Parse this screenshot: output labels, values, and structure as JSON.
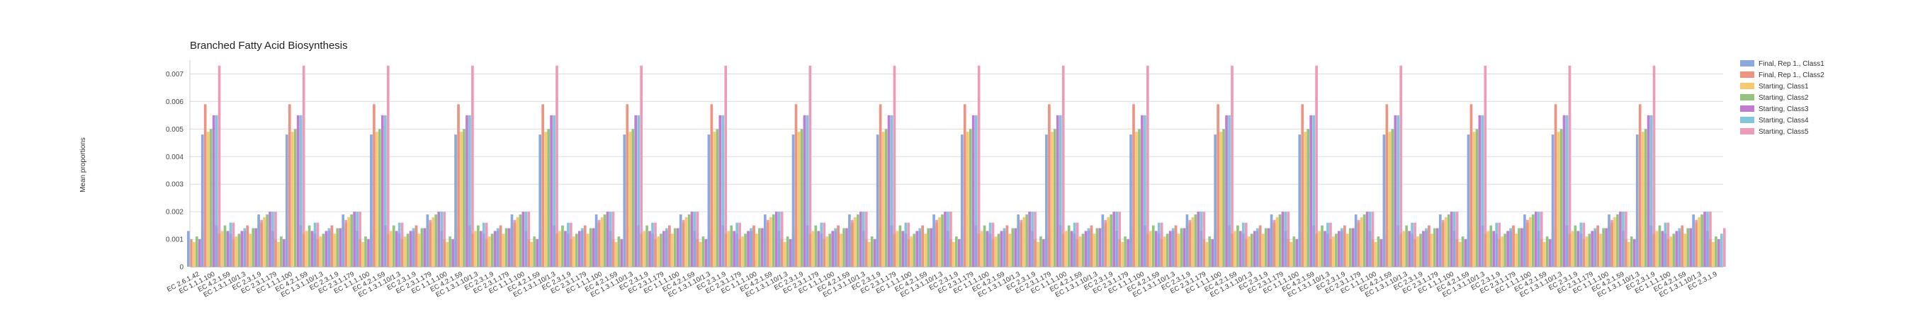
{
  "chart_data": {
    "type": "bar",
    "title": "Branched Fatty Acid Biosynthesis",
    "xlabel": "",
    "ylabel": "Mean proportions",
    "ylim": [
      0,
      0.0075
    ],
    "yticks": [
      0,
      0.001,
      0.002,
      0.003,
      0.004,
      0.005,
      0.006,
      0.007
    ],
    "grid": true,
    "legend_position": "right",
    "series": [
      {
        "name": "Final, Rep 1., Class1",
        "color": "#8aa9de"
      },
      {
        "name": "Final, Rep 1., Class2",
        "color": "#ee9380"
      },
      {
        "name": "Starting, Class1",
        "color": "#f6c96e"
      },
      {
        "name": "Starting, Class2",
        "color": "#93c47d"
      },
      {
        "name": "Starting, Class3",
        "color": "#c27ad3"
      },
      {
        "name": "Starting, Class4",
        "color": "#7fc6de"
      },
      {
        "name": "Starting, Class5",
        "color": "#ef9ab7"
      }
    ],
    "category_group": [
      "EC 2.6.1.42",
      "EC 1.1.1.100",
      "EC 4.2.1.59",
      "EC 1.3.1.10/1.3",
      "EC 2.3.1.9",
      "EC 2.3.1.179"
    ],
    "group_values": [
      [
        0.0013,
        0.001,
        0.0009,
        0.0011,
        0.001,
        0.0012,
        0.0014
      ],
      [
        0.0048,
        0.0059,
        0.0049,
        0.005,
        0.0055,
        0.0055,
        0.0073
      ],
      [
        0.0015,
        0.0012,
        0.0013,
        0.0015,
        0.0013,
        0.0016,
        0.0016
      ],
      [
        0.0012,
        0.001,
        0.0011,
        0.0012,
        0.0013,
        0.0014,
        0.0015
      ],
      [
        0.0013,
        0.0015,
        0.0012,
        0.0014,
        0.0014,
        0.0015,
        0.0017
      ],
      [
        0.0019,
        0.0016,
        0.0018,
        0.0019,
        0.002,
        0.002,
        0.002
      ]
    ],
    "categories": [
      "EC 2.6.1.42",
      "EC 1.1.1.100",
      "EC 4.2.1.59",
      "EC 1.3.1.10/1.3",
      "EC 2.3.1.9",
      "EC 2.3.1.179",
      "EC 1.1.1.100",
      "EC 4.2.1.59",
      "EC 1.3.1.10/1.3",
      "EC 2.3.1.9",
      "EC 2.3.1.179",
      "EC 1.1.1.100",
      "EC 4.2.1.59",
      "EC 1.3.1.10/1.3",
      "EC 2.3.1.9",
      "EC 2.3.1.179",
      "EC 1.1.1.100",
      "EC 4.2.1.59",
      "EC 1.3.1.10/1.3",
      "EC 2.3.1.9",
      "EC 2.3.1.179",
      "EC 1.1.1.100",
      "EC 4.2.1.59",
      "EC 1.3.1.10/1.3",
      "EC 2.3.1.9",
      "EC 2.3.1.179",
      "EC 1.1.1.100",
      "EC 4.2.1.59",
      "EC 1.3.1.10/1.3",
      "EC 2.3.1.9",
      "EC 2.3.1.179",
      "EC 1.1.1.100",
      "EC 4.2.1.59",
      "EC 1.3.1.10/1.3",
      "EC 2.3.1.9",
      "EC 2.3.1.179",
      "EC 1.1.1.100",
      "EC 4.2.1.59",
      "EC 1.3.1.10/1.3",
      "EC 2.3.1.9",
      "EC 2.3.1.179",
      "EC 1.1.1.100",
      "EC 4.2.1.59",
      "EC 1.3.1.10/1.3",
      "EC 2.3.1.9",
      "EC 2.3.1.179",
      "EC 1.1.1.100",
      "EC 4.2.1.59",
      "EC 1.3.1.10/1.3",
      "EC 2.3.1.9",
      "EC 2.3.1.179",
      "EC 1.1.1.100",
      "EC 4.2.1.59",
      "EC 1.3.1.10/1.3",
      "EC 2.3.1.9",
      "EC 2.3.1.179",
      "EC 1.1.1.100",
      "EC 4.2.1.59",
      "EC 1.3.1.10/1.3",
      "EC 2.3.1.9",
      "EC 2.3.1.179",
      "EC 1.1.1.100",
      "EC 4.2.1.59",
      "EC 1.3.1.10/1.3",
      "EC 2.3.1.9",
      "EC 2.3.1.179",
      "EC 1.1.1.100",
      "EC 4.2.1.59",
      "EC 1.3.1.10/1.3",
      "EC 2.3.1.9",
      "EC 2.3.1.179",
      "EC 1.1.1.100",
      "EC 4.2.1.59",
      "EC 1.3.1.10/1.3",
      "EC 2.3.1.9",
      "EC 2.3.1.179",
      "EC 1.1.1.100",
      "EC 4.2.1.59",
      "EC 1.3.1.10/1.3",
      "EC 2.3.1.9",
      "EC 2.3.1.179",
      "EC 1.1.1.100",
      "EC 4.2.1.59",
      "EC 1.3.1.10/1.3",
      "EC 2.3.1.9",
      "EC 2.3.1.179",
      "EC 1.1.1.100",
      "EC 4.2.1.59",
      "EC 1.3.1.10/1.3",
      "EC 2.3.1.9",
      "EC 2.3.1.179",
      "EC 1.1.1.100",
      "EC 4.2.1.59",
      "EC 1.3.1.10/1.3",
      "EC 2.3.1.9",
      "EC 1.1.1.100",
      "EC 4.2.1.59",
      "EC 1.3.1.10/1.3",
      "EC 2.3.1.9"
    ]
  }
}
